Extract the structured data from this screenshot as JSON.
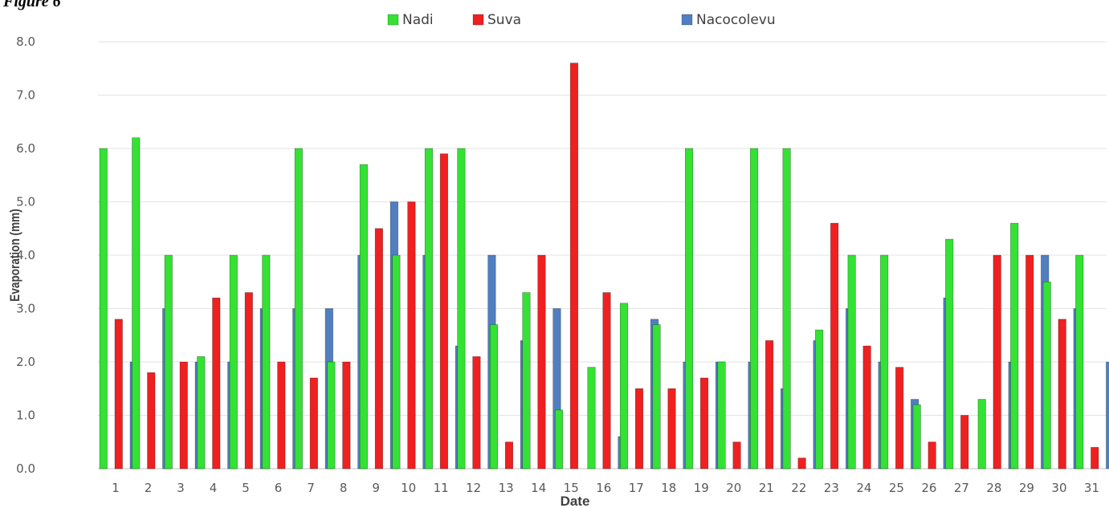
{
  "figure_label": "Figure 6",
  "chart_data": {
    "type": "bar",
    "title": "",
    "xlabel": "Date",
    "ylabel": "Evaporation (mm)",
    "ylim": [
      0,
      8
    ],
    "yticks": [
      "0.0",
      "1.0",
      "2.0",
      "3.0",
      "4.0",
      "5.0",
      "6.0",
      "7.0",
      "8.0"
    ],
    "grid": true,
    "legend_position": "top-center",
    "categories": [
      "1",
      "2",
      "3",
      "4",
      "5",
      "6",
      "7",
      "8",
      "9",
      "10",
      "11",
      "12",
      "13",
      "14",
      "15",
      "16",
      "17",
      "18",
      "19",
      "20",
      "21",
      "22",
      "23",
      "24",
      "25",
      "26",
      "27",
      "28",
      "29",
      "30",
      "31"
    ],
    "series": [
      {
        "name": "Nadi",
        "color": "#33e233",
        "values": [
          6.0,
          6.2,
          4.0,
          2.1,
          4.0,
          4.0,
          6.0,
          2.0,
          5.7,
          4.0,
          6.0,
          6.0,
          2.7,
          3.3,
          1.1,
          1.9,
          3.1,
          2.7,
          6.0,
          2.0,
          6.0,
          6.0,
          2.6,
          4.0,
          4.0,
          1.2,
          4.3,
          1.3,
          4.6,
          3.5,
          4.0
        ]
      },
      {
        "name": "Suva",
        "color": "#f02020",
        "values": [
          2.8,
          1.8,
          2.0,
          3.2,
          3.3,
          2.0,
          1.7,
          2.0,
          4.5,
          5.0,
          5.9,
          2.1,
          0.5,
          4.0,
          7.6,
          3.3,
          1.5,
          1.5,
          1.7,
          0.5,
          2.4,
          0.2,
          4.6,
          2.3,
          1.9,
          0.5,
          1.0,
          4.0,
          4.0,
          2.8,
          0.4
        ]
      },
      {
        "name": "Nacocolevu",
        "color": "#4f7fc1",
        "values": [
          2.0,
          3.0,
          2.0,
          2.0,
          3.0,
          3.0,
          3.0,
          4.0,
          5.0,
          4.0,
          2.3,
          4.0,
          2.4,
          3.0,
          0.0,
          0.6,
          2.8,
          2.0,
          2.0,
          2.0,
          1.5,
          2.4,
          3.0,
          2.0,
          1.3,
          3.2,
          0.0,
          2.0,
          4.0,
          3.0,
          2.0
        ]
      }
    ]
  }
}
